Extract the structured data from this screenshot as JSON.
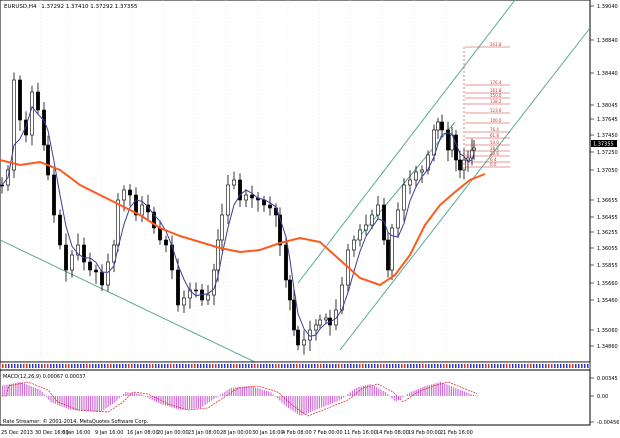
{
  "header": {
    "symbol": "EURUSD,H4",
    "ohlc": "1.37292 1.37410 1.37292 1.37355"
  },
  "price_axis": {
    "ticks": [
      "1.39040",
      "1.38840",
      "1.38440",
      "1.38045",
      "1.37645",
      "1.37450",
      "1.37250",
      "1.37050",
      "1.36655",
      "1.36455",
      "1.36255",
      "1.36055",
      "1.35855",
      "1.35660",
      "1.35460",
      "1.35060",
      "1.34860"
    ],
    "current_price": "1.37355"
  },
  "fibo": {
    "levels": [
      "261.8",
      "176.4",
      "161.8",
      "150.0",
      "138.2",
      "123.6",
      "100.0",
      "76.4",
      "61.8",
      "50.0",
      "38.2",
      "23.6",
      "6.4",
      "0.0"
    ]
  },
  "macd_panel": {
    "label": "MACD(12,26,9) 0.00067 0.00037",
    "ticks": [
      "0.00345",
      "0.00",
      "-0.00456"
    ]
  },
  "time_axis": {
    "labels": [
      "25 Dec 2013",
      "30 Dec 16:00",
      "6 Jan 16:00",
      "9 Jan 16:00",
      "16 Jan 08:00",
      "20 Jan 00:00",
      "23 Jan 08:00",
      "28 Jan 00:00",
      "30 Jan 16:00",
      "4 Feb 08:00",
      "7 Feb 00:00",
      "11 Feb 16:00",
      "14 Feb 08:00",
      "19 Feb 00:00",
      "21 Feb 16:00"
    ]
  },
  "footer": {
    "copyright": "Rate Streamer: © 2001-2014, MetaQuotes Software Corp."
  },
  "colors": {
    "candle": "#000000",
    "ma_fast": "#3c3ca0",
    "ma_slow": "#ff5a1e",
    "channel": "#5aaa96",
    "fibo": "#c83232",
    "macd_hist": "#d070d8",
    "macd_signal": "#e03030"
  }
}
